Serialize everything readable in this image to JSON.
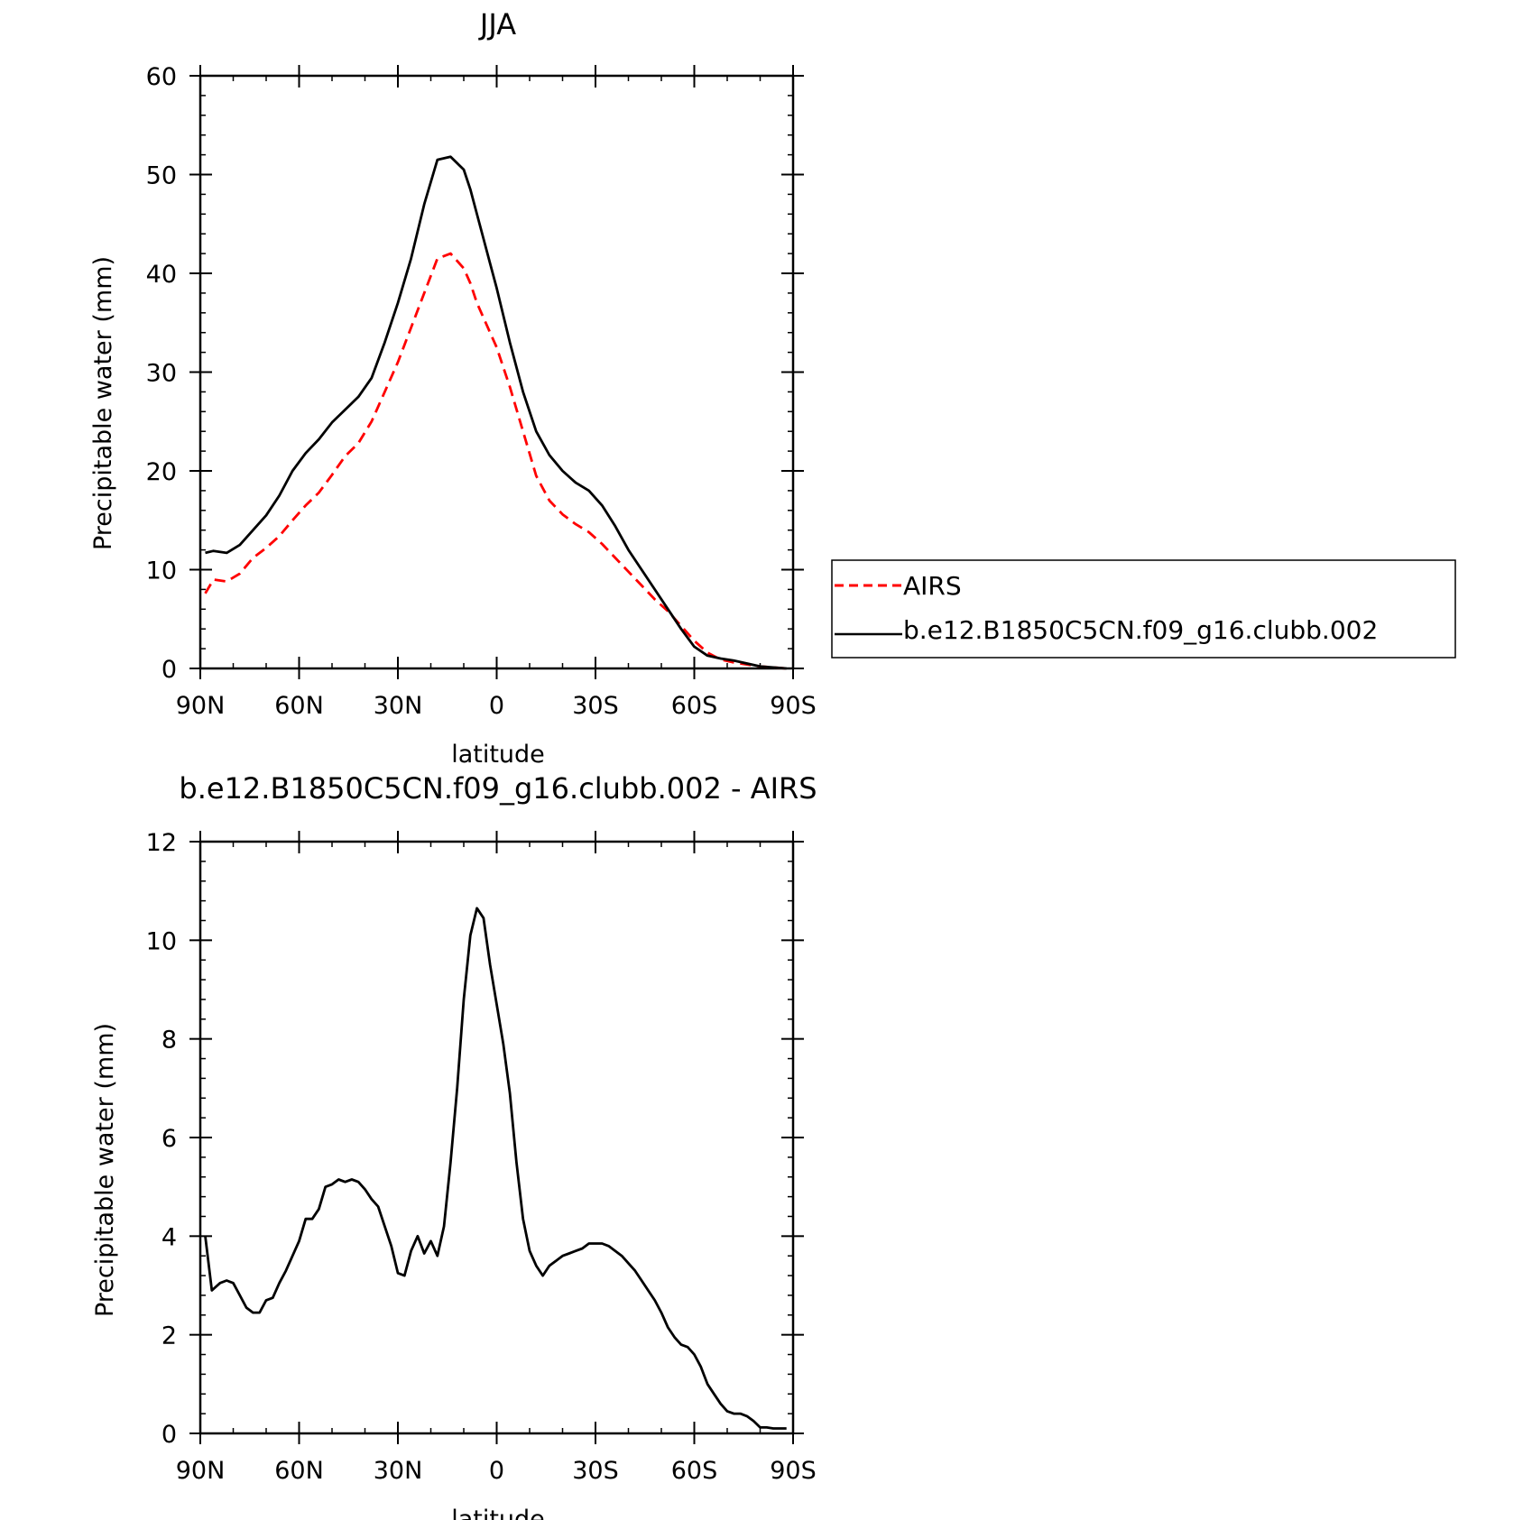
{
  "chart_data": [
    {
      "type": "line",
      "title": "JJA",
      "xlabel": "latitude",
      "ylabel": "Precipitable water (mm)",
      "xlim": [
        90,
        -90
      ],
      "ylim": [
        0,
        60
      ],
      "xticks": [
        {
          "value": 90,
          "label": "90N"
        },
        {
          "value": 60,
          "label": "60N"
        },
        {
          "value": 30,
          "label": "30N"
        },
        {
          "value": 0,
          "label": "0"
        },
        {
          "value": -30,
          "label": "30S"
        },
        {
          "value": -60,
          "label": "60S"
        },
        {
          "value": -90,
          "label": "90S"
        }
      ],
      "yticks": [
        {
          "value": 0,
          "label": "0"
        },
        {
          "value": 10,
          "label": "10"
        },
        {
          "value": 20,
          "label": "20"
        },
        {
          "value": 30,
          "label": "30"
        },
        {
          "value": 40,
          "label": "40"
        },
        {
          "value": 50,
          "label": "50"
        },
        {
          "value": 60,
          "label": "60"
        }
      ],
      "legend_position": "right",
      "series": [
        {
          "name": "AIRS",
          "color": "#ff0000",
          "style": "dashed",
          "x": [
            88.5,
            86,
            82,
            78,
            74,
            70,
            66,
            62,
            58,
            54,
            50,
            46,
            42,
            38,
            34,
            30,
            26,
            22,
            18,
            14,
            10,
            8,
            6,
            4,
            2,
            0,
            -4,
            -8,
            -12,
            -16,
            -20,
            -24,
            -28,
            -32,
            -36,
            -40,
            -44,
            -48,
            -52,
            -56,
            -60,
            -64,
            -68,
            -72,
            -76,
            -80,
            -84,
            -88
          ],
          "y": [
            7.6,
            9.0,
            8.8,
            9.6,
            11.2,
            12.2,
            13.4,
            15.0,
            16.5,
            17.8,
            19.6,
            21.5,
            22.8,
            25.0,
            28.0,
            31.0,
            34.5,
            38.0,
            41.5,
            42.0,
            40.5,
            39.0,
            37.0,
            35.5,
            34.0,
            32.5,
            28.5,
            24.0,
            19.5,
            17.0,
            15.6,
            14.6,
            13.8,
            12.6,
            11.2,
            9.8,
            8.4,
            7.0,
            5.8,
            4.3,
            2.8,
            1.6,
            0.9,
            0.6,
            0.4,
            0.2,
            0.1,
            0.0
          ]
        },
        {
          "name": "b.e12.B1850C5CN.f09_g16.clubb.002",
          "color": "#000000",
          "style": "solid",
          "x": [
            88.5,
            86,
            82,
            78,
            74,
            70,
            66,
            62,
            58,
            54,
            50,
            46,
            42,
            38,
            34,
            30,
            26,
            22,
            18,
            14,
            10,
            8,
            6,
            4,
            2,
            0,
            -4,
            -8,
            -12,
            -16,
            -20,
            -24,
            -28,
            -32,
            -36,
            -40,
            -44,
            -48,
            -52,
            -56,
            -60,
            -64,
            -68,
            -72,
            -76,
            -80,
            -84,
            -88
          ],
          "y": [
            11.7,
            11.9,
            11.7,
            12.5,
            14.0,
            15.5,
            17.5,
            20.0,
            21.8,
            23.2,
            24.9,
            26.2,
            27.5,
            29.4,
            33.0,
            37.0,
            41.5,
            47.0,
            51.5,
            51.8,
            50.5,
            48.5,
            46.0,
            43.5,
            41.0,
            38.5,
            33.0,
            28.0,
            24.0,
            21.6,
            20.0,
            18.8,
            18.0,
            16.5,
            14.4,
            12.0,
            10.0,
            8.0,
            6.0,
            4.0,
            2.2,
            1.3,
            1.0,
            0.8,
            0.5,
            0.2,
            0.1,
            0.0
          ]
        }
      ]
    },
    {
      "type": "line",
      "title": "b.e12.B1850C5CN.f09_g16.clubb.002 - AIRS",
      "xlabel": "latitude",
      "ylabel": "Precipitable water (mm)",
      "xlim": [
        90,
        -90
      ],
      "ylim": [
        0,
        12
      ],
      "xticks": [
        {
          "value": 90,
          "label": "90N"
        },
        {
          "value": 60,
          "label": "60N"
        },
        {
          "value": 30,
          "label": "30N"
        },
        {
          "value": 0,
          "label": "0"
        },
        {
          "value": -30,
          "label": "30S"
        },
        {
          "value": -60,
          "label": "60S"
        },
        {
          "value": -90,
          "label": "90S"
        }
      ],
      "yticks": [
        {
          "value": 0,
          "label": "0"
        },
        {
          "value": 2,
          "label": "2"
        },
        {
          "value": 4,
          "label": "4"
        },
        {
          "value": 6,
          "label": "6"
        },
        {
          "value": 8,
          "label": "8"
        },
        {
          "value": 10,
          "label": "10"
        },
        {
          "value": 12,
          "label": "12"
        }
      ],
      "series": [
        {
          "color": "#000000",
          "style": "solid",
          "x": [
            88.5,
            86.5,
            84,
            82,
            80,
            78,
            76,
            74,
            72,
            70,
            68,
            66,
            64,
            62,
            60,
            58,
            56,
            54,
            52,
            50,
            48,
            46,
            44,
            42,
            40,
            38,
            36,
            34,
            32,
            30,
            28,
            26,
            24,
            22,
            20,
            18,
            16,
            14,
            12,
            10,
            8,
            6,
            4,
            2,
            0,
            -2,
            -4,
            -6,
            -8,
            -10,
            -12,
            -14,
            -16,
            -18,
            -20,
            -22,
            -24,
            -26,
            -28,
            -30,
            -32,
            -34,
            -36,
            -38,
            -40,
            -42,
            -44,
            -46,
            -48,
            -50,
            -52,
            -54,
            -56,
            -58,
            -60,
            -62,
            -64,
            -66,
            -68,
            -70,
            -72,
            -74,
            -76,
            -78,
            -80,
            -82,
            -84,
            -86,
            -88
          ],
          "y": [
            4.0,
            2.9,
            3.05,
            3.1,
            3.05,
            2.8,
            2.55,
            2.45,
            2.45,
            2.7,
            2.75,
            3.05,
            3.3,
            3.6,
            3.9,
            4.35,
            4.35,
            4.55,
            5.0,
            5.05,
            5.15,
            5.1,
            5.15,
            5.1,
            4.95,
            4.75,
            4.6,
            4.2,
            3.8,
            3.25,
            3.2,
            3.7,
            4.0,
            3.65,
            3.9,
            3.6,
            4.2,
            5.5,
            7.0,
            8.8,
            10.1,
            10.65,
            10.45,
            9.5,
            8.7,
            7.9,
            6.9,
            5.5,
            4.35,
            3.7,
            3.4,
            3.2,
            3.4,
            3.5,
            3.6,
            3.65,
            3.7,
            3.75,
            3.85,
            3.85,
            3.85,
            3.8,
            3.7,
            3.6,
            3.45,
            3.3,
            3.1,
            2.9,
            2.7,
            2.45,
            2.15,
            1.95,
            1.8,
            1.75,
            1.6,
            1.35,
            1.0,
            0.8,
            0.6,
            0.45,
            0.4,
            0.4,
            0.35,
            0.25,
            0.12,
            0.12,
            0.1,
            0.1,
            0.1
          ]
        }
      ]
    }
  ]
}
